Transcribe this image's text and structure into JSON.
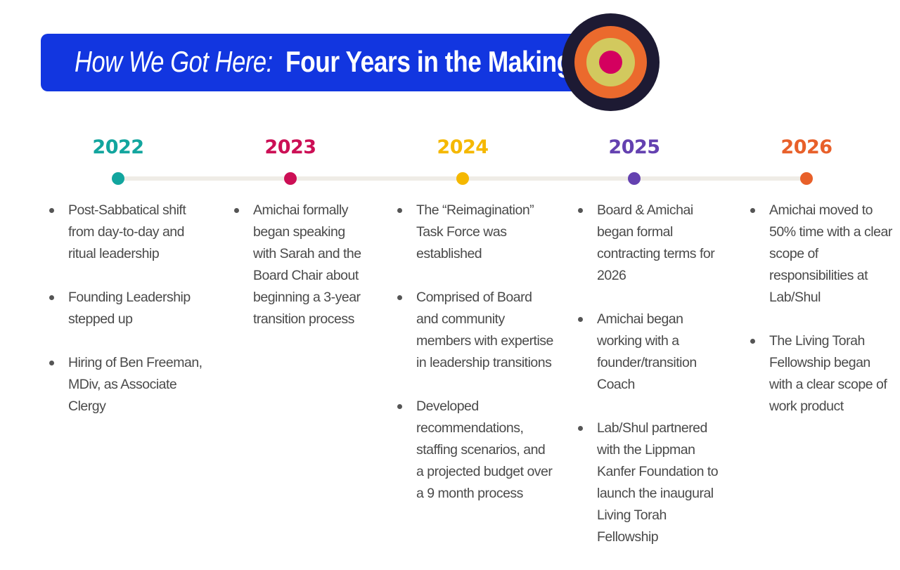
{
  "title": {
    "italic": "How We Got Here:",
    "bold": "Four Years in the Making"
  },
  "colors": {
    "title_bar": "#1236e0",
    "target_outer": "#1d1a33",
    "target_ring1": "#eb6a2d",
    "target_ring2": "#d2c95e",
    "target_center": "#d4005f",
    "line": "#efece6"
  },
  "timeline": [
    {
      "year": "2022",
      "color": "#12a59e",
      "items": [
        "Post-Sabbatical shift from day-to-day and ritual leadership",
        "Founding Leadership stepped up",
        "Hiring of Ben Freeman, MDiv, as Associate Clergy"
      ]
    },
    {
      "year": "2023",
      "color": "#cc0f55",
      "items": [
        "Amichai formally began speaking with Sarah and the Board Chair about beginning a 3-year transition process"
      ]
    },
    {
      "year": "2024",
      "color": "#f5b800",
      "items": [
        "The “Reimagination” Task Force was established",
        "Comprised of Board and community members with expertise in leadership transitions",
        "Developed recommendations, staffing scenarios, and a projected budget over a 9 month process"
      ]
    },
    {
      "year": "2025",
      "color": "#6441b0",
      "items": [
        "Board & Amichai began formal contracting terms for 2026",
        "Amichai began working with a founder/transition Coach",
        "Lab/Shul partnered with the Lippman Kanfer Foundation to launch the inaugural Living Torah Fellowship"
      ]
    },
    {
      "year": "2026",
      "color": "#e8602a",
      "items": [
        "Amichai moved to 50% time with a clear scope of responsibilities at Lab/Shul",
        "The Living Torah Fellowship began with a clear scope of work product"
      ]
    }
  ]
}
